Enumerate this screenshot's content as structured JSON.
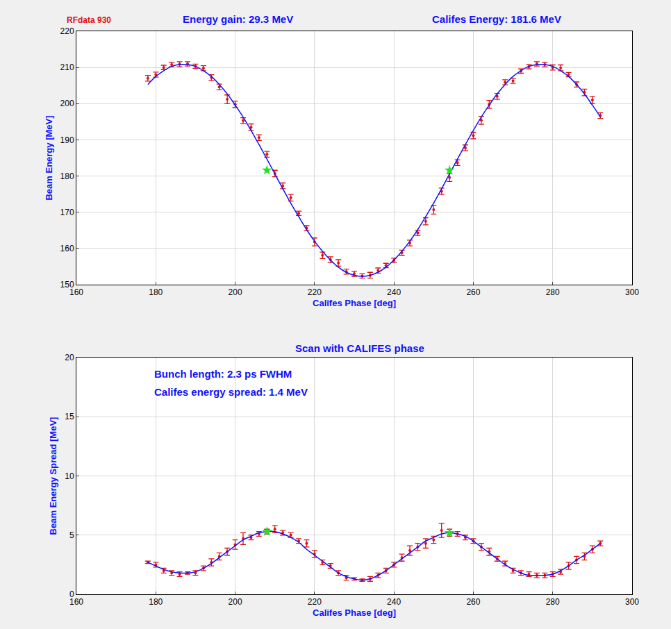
{
  "chart_data": [
    {
      "type": "scatter",
      "annotations": [
        "RFdata 930",
        "Energy gain: 29.3 MeV",
        "Califes Energy: 181.6 MeV"
      ],
      "x_label": "Califes Phase [deg]",
      "y_label": "Beam Energy [MeV]",
      "xlim": [
        160,
        300
      ],
      "xticks": [
        160,
        180,
        200,
        220,
        240,
        260,
        280,
        300
      ],
      "ylim": [
        150,
        220
      ],
      "yticks": [
        150,
        160,
        170,
        180,
        190,
        200,
        210,
        220
      ],
      "grid": true,
      "series": [
        {
          "type": "scatter",
          "marker": "dot",
          "color": "#e01010",
          "x": [
            178,
            180,
            182,
            184,
            186,
            188,
            190,
            192,
            194,
            196,
            198,
            200,
            202,
            204,
            206,
            208,
            210,
            212,
            214,
            216,
            218,
            220,
            222,
            224,
            226,
            228,
            230,
            232,
            234,
            236,
            238,
            240,
            242,
            244,
            246,
            248,
            250,
            252,
            254,
            256,
            258,
            260,
            262,
            264,
            266,
            268,
            270,
            272,
            274,
            276,
            278,
            280,
            282,
            284,
            286,
            288,
            290,
            292
          ],
          "values": [
            207.0,
            208.0,
            210.0,
            210.8,
            210.9,
            211.0,
            210.3,
            209.8,
            207.2,
            204.6,
            201.2,
            199.8,
            195.3,
            193.5,
            190.6,
            186.0,
            180.7,
            177.3,
            174.0,
            169.7,
            165.6,
            161.8,
            158.1,
            156.9,
            156.0,
            153.6,
            153.0,
            152.4,
            152.6,
            153.9,
            155.3,
            156.7,
            158.8,
            161.5,
            164.3,
            167.5,
            170.7,
            175.8,
            179.6,
            183.7,
            187.8,
            191.2,
            195.4,
            199.8,
            202.0,
            205.9,
            206.3,
            209.0,
            210.2,
            211.0,
            210.8,
            210.0,
            209.9,
            208.0,
            205.3,
            203.1,
            201.0,
            196.7
          ],
          "errors": [
            0.8,
            0.7,
            0.6,
            0.6,
            0.7,
            0.6,
            0.6,
            0.7,
            0.8,
            0.8,
            1.2,
            0.9,
            0.8,
            0.9,
            0.8,
            0.8,
            0.9,
            0.8,
            0.9,
            0.6,
            0.7,
            1.1,
            0.9,
            0.8,
            0.9,
            0.7,
            0.7,
            0.6,
            0.8,
            0.7,
            0.6,
            0.6,
            0.7,
            0.8,
            0.7,
            1.0,
            1.2,
            0.9,
            1.1,
            0.8,
            0.8,
            0.9,
            1.1,
            1.1,
            0.8,
            0.7,
            0.7,
            0.6,
            0.6,
            0.6,
            0.6,
            0.7,
            0.8,
            0.6,
            0.7,
            0.9,
            1.0,
            0.8
          ]
        },
        {
          "type": "line",
          "color": "#1010ff",
          "x": [
            178,
            180,
            182,
            184,
            186,
            188,
            190,
            192,
            194,
            196,
            198,
            200,
            202,
            204,
            206,
            208,
            210,
            212,
            214,
            216,
            218,
            220,
            222,
            224,
            226,
            228,
            230,
            232,
            234,
            236,
            238,
            240,
            242,
            244,
            246,
            248,
            250,
            252,
            254,
            256,
            258,
            260,
            262,
            264,
            266,
            268,
            270,
            272,
            274,
            276,
            278,
            280,
            282,
            284,
            286,
            288,
            290,
            292
          ],
          "values": [
            205.3,
            207.5,
            209.1,
            210.3,
            210.8,
            210.8,
            210.3,
            209.1,
            207.5,
            205.3,
            202.7,
            199.6,
            196.3,
            192.6,
            188.7,
            184.7,
            180.6,
            176.5,
            172.5,
            168.8,
            165.2,
            162.0,
            159.2,
            156.8,
            154.8,
            153.4,
            152.6,
            152.3,
            152.6,
            153.4,
            154.8,
            156.8,
            159.2,
            162.0,
            165.2,
            168.8,
            172.5,
            176.5,
            180.6,
            184.7,
            188.7,
            192.6,
            196.3,
            199.6,
            202.7,
            205.3,
            207.5,
            209.1,
            210.3,
            210.8,
            210.8,
            210.3,
            209.1,
            207.5,
            205.3,
            202.7,
            199.6,
            196.3
          ]
        },
        {
          "type": "scatter",
          "marker": "star",
          "color": "#22e022",
          "x": [
            208,
            254
          ],
          "values": [
            181.6,
            181.6
          ]
        }
      ]
    },
    {
      "type": "scatter",
      "title": "Scan with CALIFES phase",
      "annotations": [
        "Bunch length: 2.3 ps FWHM",
        "Califes energy spread: 1.4 MeV"
      ],
      "x_label": "Califes Phase [deg]",
      "y_label": "Beam Energy Spread [MeV]",
      "xlim": [
        160,
        300
      ],
      "xticks": [
        160,
        180,
        200,
        220,
        240,
        260,
        280,
        300
      ],
      "ylim": [
        0,
        20
      ],
      "yticks": [
        0,
        5,
        10,
        15,
        20
      ],
      "grid": true,
      "series": [
        {
          "type": "scatter",
          "marker": "dot",
          "color": "#e01010",
          "x": [
            178,
            180,
            182,
            184,
            186,
            188,
            190,
            192,
            194,
            196,
            198,
            200,
            202,
            204,
            206,
            208,
            210,
            212,
            214,
            216,
            218,
            220,
            222,
            224,
            226,
            228,
            230,
            232,
            234,
            236,
            238,
            240,
            242,
            244,
            246,
            248,
            250,
            252,
            254,
            256,
            258,
            260,
            262,
            264,
            266,
            268,
            270,
            272,
            274,
            276,
            278,
            280,
            282,
            284,
            286,
            288,
            290,
            292
          ],
          "values": [
            2.7,
            2.5,
            2.0,
            1.8,
            1.7,
            1.8,
            1.8,
            2.2,
            2.7,
            3.2,
            3.6,
            4.2,
            4.7,
            4.8,
            5.1,
            5.3,
            5.5,
            5.2,
            5.0,
            4.5,
            4.3,
            3.4,
            2.7,
            2.4,
            1.8,
            1.4,
            1.3,
            1.2,
            1.3,
            1.6,
            2.0,
            2.5,
            3.1,
            3.7,
            4.0,
            4.3,
            4.6,
            5.4,
            5.2,
            5.1,
            4.8,
            4.5,
            4.0,
            3.6,
            3.0,
            2.6,
            2.0,
            1.8,
            1.7,
            1.6,
            1.6,
            1.7,
            1.9,
            2.4,
            2.9,
            3.2,
            3.8,
            4.3
          ],
          "errors": [
            0.1,
            0.2,
            0.2,
            0.2,
            0.2,
            0.1,
            0.2,
            0.2,
            0.3,
            0.3,
            0.3,
            0.4,
            0.5,
            0.2,
            0.2,
            0.2,
            0.3,
            0.2,
            0.2,
            0.2,
            0.3,
            0.3,
            0.2,
            0.2,
            0.2,
            0.2,
            0.1,
            0.1,
            0.2,
            0.2,
            0.2,
            0.2,
            0.3,
            0.4,
            0.3,
            0.4,
            0.3,
            0.6,
            0.3,
            0.2,
            0.2,
            0.2,
            0.3,
            0.3,
            0.2,
            0.2,
            0.2,
            0.2,
            0.2,
            0.2,
            0.2,
            0.2,
            0.2,
            0.3,
            0.3,
            0.3,
            0.3,
            0.2
          ]
        },
        {
          "type": "line",
          "color": "#1010ff",
          "x": [
            178,
            180,
            182,
            184,
            186,
            188,
            190,
            192,
            194,
            196,
            198,
            200,
            202,
            204,
            206,
            208,
            210,
            212,
            214,
            216,
            218,
            220,
            222,
            224,
            226,
            228,
            230,
            232,
            234,
            236,
            238,
            240,
            242,
            244,
            246,
            248,
            250,
            252,
            254,
            256,
            258,
            260,
            262,
            264,
            266,
            268,
            270,
            272,
            274,
            276,
            278,
            280,
            282,
            284,
            286,
            288,
            290,
            292
          ],
          "values": [
            2.7,
            2.4,
            2.1,
            1.9,
            1.8,
            1.8,
            1.9,
            2.2,
            2.6,
            3.1,
            3.6,
            4.1,
            4.6,
            4.9,
            5.2,
            5.3,
            5.3,
            5.1,
            4.8,
            4.4,
            3.8,
            3.3,
            2.8,
            2.3,
            1.8,
            1.5,
            1.3,
            1.2,
            1.3,
            1.6,
            2.0,
            2.5,
            3.0,
            3.5,
            4.0,
            4.5,
            4.8,
            5.1,
            5.2,
            5.1,
            4.9,
            4.5,
            4.0,
            3.5,
            3.0,
            2.5,
            2.1,
            1.8,
            1.6,
            1.6,
            1.6,
            1.7,
            2.0,
            2.4,
            2.9,
            3.3,
            3.8,
            4.3
          ]
        },
        {
          "type": "scatter",
          "marker": "star",
          "color": "#22e022",
          "x": [
            208,
            254
          ],
          "values": [
            5.3,
            5.2
          ]
        }
      ]
    }
  ]
}
